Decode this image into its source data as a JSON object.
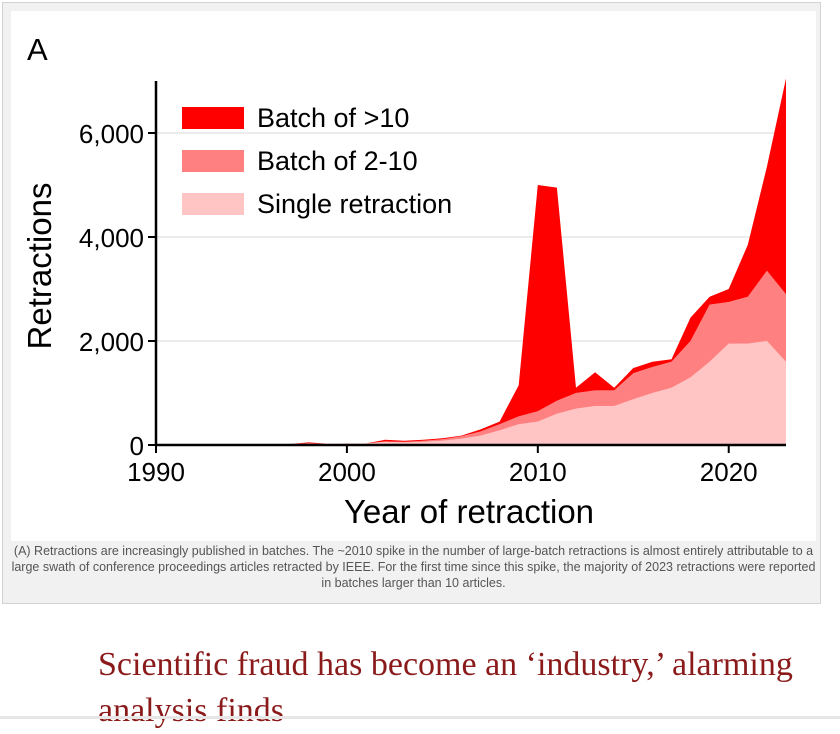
{
  "figure": {
    "panel_label": "A",
    "caption": "(A) Retractions are increasingly published in batches. The ~2010 spike in the number of large-batch retractions is almost entirely attributable to a large swath of conference proceedings articles retracted by IEEE. For the first time since this spike, the majority of 2023 retractions were reported in batches larger than 10 articles."
  },
  "chart_data": {
    "type": "area",
    "stacked": true,
    "xlabel": "Year of retraction",
    "ylabel": "Retractions",
    "xlim": [
      1990,
      2023
    ],
    "ylim": [
      0,
      7000
    ],
    "x_ticks": [
      "1990",
      "2000",
      "2010",
      "2020"
    ],
    "y_ticks": [
      "0",
      "2,000",
      "4,000",
      "6,000"
    ],
    "grid": "horizontal",
    "legend_position": "top-left",
    "x": [
      1990,
      1991,
      1992,
      1993,
      1994,
      1995,
      1996,
      1997,
      1998,
      1999,
      2000,
      2001,
      2002,
      2003,
      2004,
      2005,
      2006,
      2007,
      2008,
      2009,
      2010,
      2011,
      2012,
      2013,
      2014,
      2015,
      2016,
      2017,
      2018,
      2019,
      2020,
      2021,
      2022,
      2023
    ],
    "series": [
      {
        "name": "Single retraction",
        "color": "#ffc4c4",
        "values": [
          5,
          5,
          5,
          5,
          8,
          10,
          15,
          20,
          30,
          25,
          30,
          30,
          60,
          50,
          60,
          80,
          120,
          180,
          280,
          400,
          450,
          600,
          700,
          750,
          750,
          880,
          1000,
          1100,
          1300,
          1600,
          1950,
          1950,
          2000,
          1600
        ]
      },
      {
        "name": "Batch of 2-10",
        "color": "#ff8080",
        "values": [
          0,
          0,
          0,
          0,
          0,
          0,
          0,
          0,
          0,
          0,
          0,
          0,
          10,
          10,
          20,
          30,
          50,
          80,
          120,
          150,
          200,
          250,
          300,
          300,
          300,
          500,
          500,
          500,
          700,
          1100,
          800,
          900,
          1350,
          1300
        ]
      },
      {
        "name": "Batch of >10",
        "color": "#ff0000",
        "values": [
          0,
          0,
          0,
          0,
          0,
          0,
          0,
          0,
          20,
          0,
          0,
          0,
          30,
          20,
          20,
          20,
          10,
          40,
          50,
          600,
          4350,
          4100,
          100,
          350,
          50,
          100,
          100,
          50,
          450,
          150,
          250,
          1000,
          2000,
          4150
        ]
      }
    ]
  }
}
